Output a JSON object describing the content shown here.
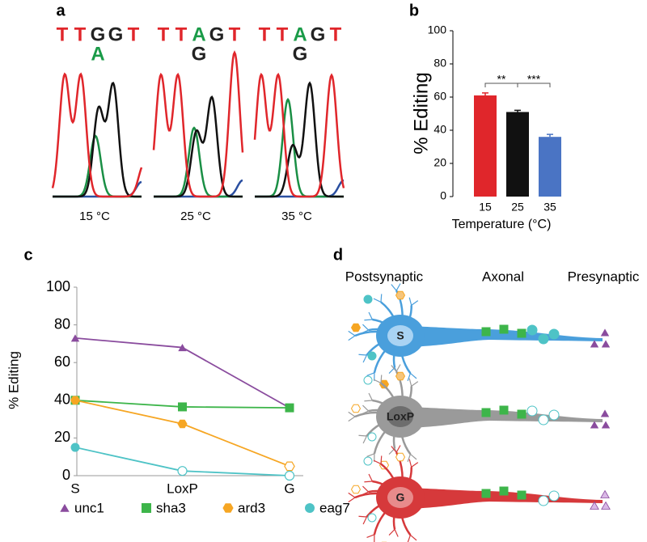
{
  "panel_labels": [
    "a",
    "b",
    "c",
    "d"
  ],
  "chromatogram": {
    "columns": [
      {
        "bases": [
          "T",
          "T",
          "G",
          "G",
          "T"
        ],
        "alt_base": "A",
        "label": "15 °C"
      },
      {
        "bases": [
          "T",
          "T",
          "A",
          "G",
          "T"
        ],
        "alt_base": "G",
        "label": "25 °C"
      },
      {
        "bases": [
          "T",
          "T",
          "A",
          "G",
          "T"
        ],
        "alt_base": "G",
        "label": "35 °C"
      }
    ],
    "base_colors": {
      "T": "#e0262b",
      "G": "#222222",
      "A": "#1a9b48"
    }
  },
  "chart_data": [
    {
      "type": "bar",
      "categories": [
        "15",
        "25",
        "35"
      ],
      "values": [
        61,
        51,
        36
      ],
      "errors": [
        1.5,
        1,
        1.5
      ],
      "colors": [
        "#e0262b",
        "#111111",
        "#4a74c4"
      ],
      "ylim": [
        0,
        100
      ],
      "yticks": [
        0,
        20,
        40,
        60,
        80,
        100
      ],
      "ylabel": "% Editing",
      "xlabel": "Temperature (°C)",
      "significance": [
        "**",
        "***"
      ]
    },
    {
      "type": "line",
      "categories": [
        "S",
        "LoxP",
        "G"
      ],
      "series": [
        {
          "name": "unc1",
          "color": "#8a4c9e",
          "marker": "triangle",
          "values": [
            73,
            68,
            36
          ],
          "open": [
            false,
            false,
            false
          ]
        },
        {
          "name": "sha3",
          "color": "#3db54a",
          "marker": "square",
          "values": [
            40,
            36.5,
            36
          ],
          "open": [
            false,
            false,
            false
          ]
        },
        {
          "name": "ard3",
          "color": "#f6a623",
          "marker": "hexagon",
          "values": [
            40,
            27.5,
            5
          ],
          "open": [
            false,
            false,
            true
          ]
        },
        {
          "name": "eag7",
          "color": "#4ec3c6",
          "marker": "circle",
          "values": [
            15,
            2.5,
            0
          ],
          "open": [
            false,
            true,
            true
          ]
        }
      ],
      "ylim": [
        0,
        100
      ],
      "yticks": [
        0,
        20,
        40,
        60,
        80,
        100
      ],
      "ylabel": "% Editing"
    }
  ],
  "neuron_diagram": {
    "regions": [
      "Postsynaptic",
      "Axonal",
      "Presynaptic"
    ],
    "neurons": [
      {
        "label": "S",
        "color": "#4a9fdc"
      },
      {
        "label": "LoxP",
        "color": "#9a9a9a"
      },
      {
        "label": "G",
        "color": "#d6393b"
      }
    ]
  }
}
